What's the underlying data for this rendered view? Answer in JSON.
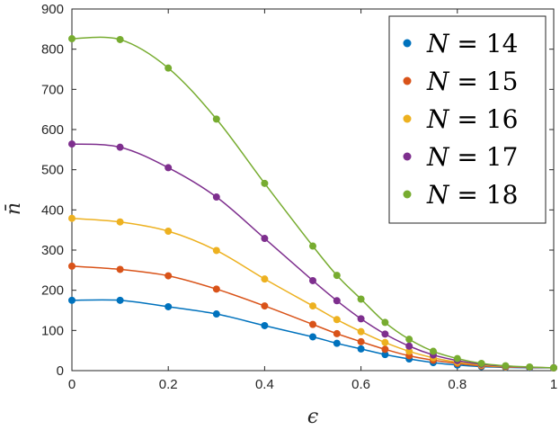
{
  "chart_data": {
    "type": "line",
    "xlabel": "ϵ",
    "ylabel": "n̄",
    "xlim": [
      0,
      1
    ],
    "ylim": [
      0,
      900
    ],
    "xticks": [
      0,
      0.2,
      0.4,
      0.6,
      0.8,
      1
    ],
    "xtick_labels": [
      "0",
      "0.2",
      "0.4",
      "0.6",
      "0.8",
      "1"
    ],
    "yticks": [
      0,
      100,
      200,
      300,
      400,
      500,
      600,
      700,
      800,
      900
    ],
    "ytick_labels": [
      "0",
      "100",
      "200",
      "300",
      "400",
      "500",
      "600",
      "700",
      "800",
      "900"
    ],
    "grid": false,
    "legend_position": "top-right",
    "x": [
      0,
      0.1,
      0.2,
      0.3,
      0.4,
      0.5,
      0.55,
      0.6,
      0.65,
      0.7,
      0.75,
      0.8,
      0.85,
      0.9,
      0.95,
      1.0
    ],
    "series": [
      {
        "name": "N = 14",
        "legend_var": "N",
        "legend_rest": " = 14",
        "color": "#0072BD",
        "values": [
          175,
          175,
          159,
          141,
          112,
          84,
          68,
          54,
          40,
          29,
          20,
          14,
          10,
          8,
          7,
          7
        ]
      },
      {
        "name": "N = 15",
        "legend_var": "N",
        "legend_rest": " = 15",
        "color": "#D95319",
        "values": [
          260,
          252,
          236,
          203,
          161,
          115,
          92,
          72,
          53,
          37,
          26,
          18,
          12,
          9,
          8,
          7
        ]
      },
      {
        "name": "N = 16",
        "legend_var": "N",
        "legend_rest": " = 16",
        "color": "#EDB120",
        "values": [
          379,
          370,
          347,
          299,
          228,
          161,
          127,
          97,
          70,
          48,
          32,
          21,
          14,
          10,
          8,
          7
        ]
      },
      {
        "name": "N = 17",
        "legend_var": "N",
        "legend_rest": " = 17",
        "color": "#7E2F8E",
        "values": [
          564,
          556,
          505,
          432,
          329,
          224,
          174,
          129,
          91,
          61,
          39,
          25,
          16,
          11,
          8,
          7
        ]
      },
      {
        "name": "N = 18",
        "legend_var": "N",
        "legend_rest": " = 18",
        "color": "#77AC30",
        "values": [
          826,
          824,
          753,
          626,
          466,
          310,
          237,
          178,
          120,
          78,
          48,
          30,
          18,
          12,
          9,
          7
        ]
      }
    ]
  }
}
